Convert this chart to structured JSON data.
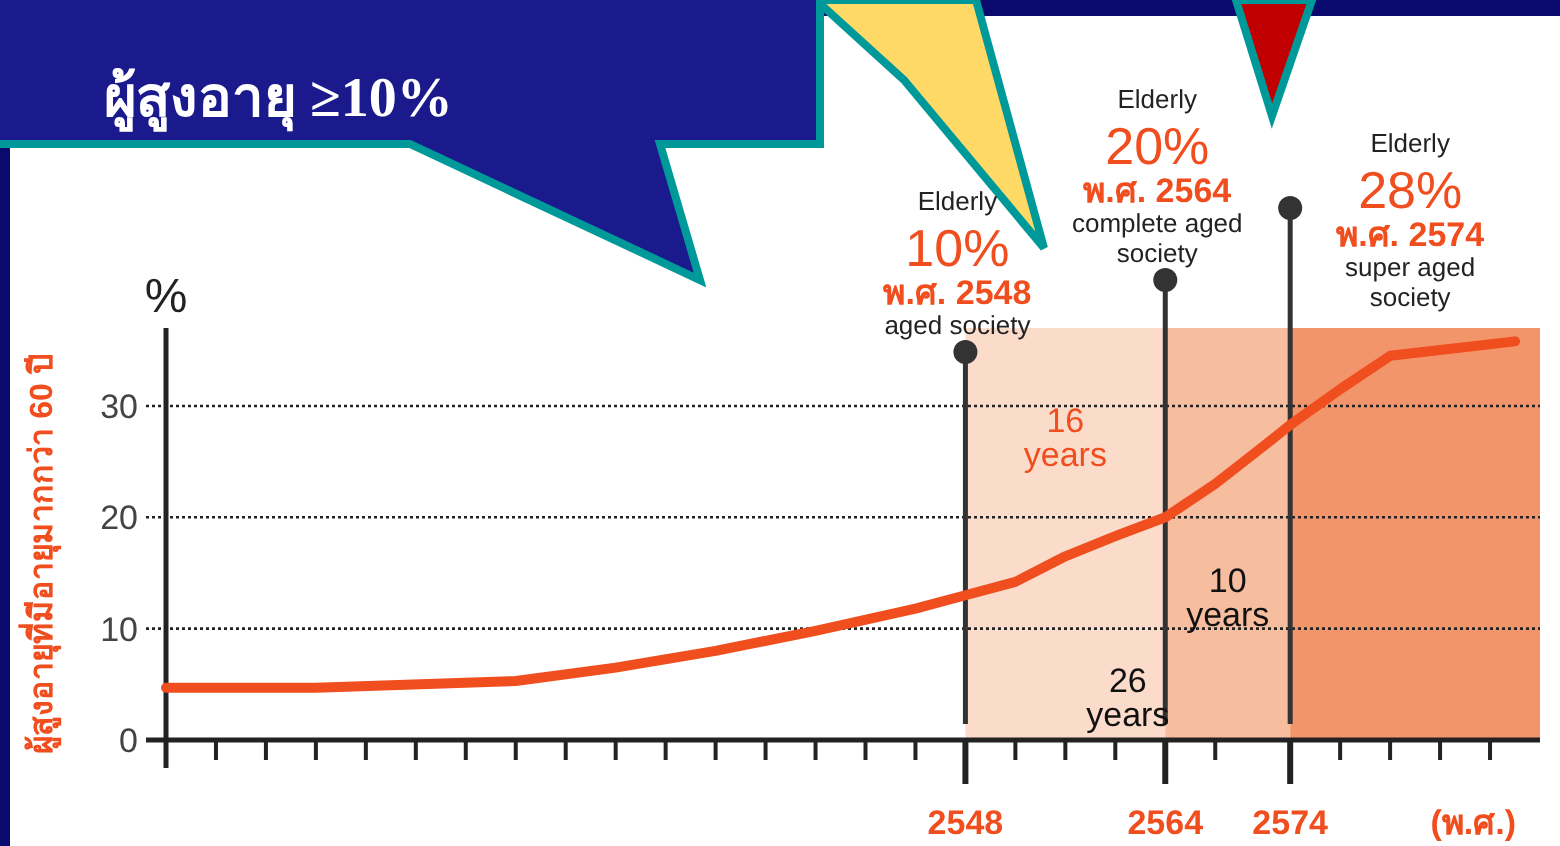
{
  "chart_data": {
    "type": "line",
    "ylabel": "ผู้สูงอายุที่มีอายุมากกว่า 60 ปี",
    "xlabel": "(พ.ศ.)",
    "x": [
      2484,
      2496,
      2512,
      2520,
      2528,
      2536,
      2544,
      2548,
      2552,
      2556,
      2560,
      2564,
      2568,
      2572,
      2574,
      2578,
      2582,
      2592
    ],
    "series": [
      {
        "color": "#f04e1e",
        "values": [
          4.7,
          4.7,
          5.3,
          6.5,
          8,
          9.8,
          11.8,
          13,
          14.2,
          16.5,
          18.3,
          20,
          23,
          26.5,
          28.3,
          31.5,
          34.5,
          35.8
        ]
      }
    ],
    "xlim": [
      2484,
      2594
    ],
    "ylim": [
      0,
      37
    ],
    "xticks": [
      {
        "value": 2484,
        "label": null
      },
      {
        "value": 2488,
        "label": null
      },
      {
        "value": 2492,
        "label": null
      },
      {
        "value": 2496,
        "label": null
      },
      {
        "value": 2500,
        "label": null
      },
      {
        "value": 2504,
        "label": null
      },
      {
        "value": 2508,
        "label": null
      },
      {
        "value": 2512,
        "label": null
      },
      {
        "value": 2516,
        "label": null
      },
      {
        "value": 2520,
        "label": null
      },
      {
        "value": 2524,
        "label": null
      },
      {
        "value": 2528,
        "label": null
      },
      {
        "value": 2532,
        "label": null
      },
      {
        "value": 2536,
        "label": null
      },
      {
        "value": 2540,
        "label": null
      },
      {
        "value": 2544,
        "label": null
      },
      2548,
      {
        "value": 2552,
        "label": null
      },
      {
        "value": 2556,
        "label": null
      },
      {
        "value": 2560,
        "label": null
      },
      2564,
      {
        "value": 2568,
        "label": null
      },
      2574,
      {
        "value": 2578,
        "label": null
      },
      {
        "value": 2582,
        "label": null
      },
      {
        "value": 2586,
        "label": null
      },
      {
        "value": 2590,
        "label": null
      }
    ],
    "yticks": [
      0,
      10,
      20,
      30
    ],
    "grid": "y",
    "bands": [
      {
        "axis": "x",
        "from": 2548,
        "to": 2564,
        "color": "#fbdccb"
      },
      {
        "axis": "x",
        "from": 2564,
        "to": 2574,
        "color": "#f7bd9f"
      },
      {
        "axis": "x",
        "from": 2574,
        "to": 2594,
        "color": "#f2956b"
      }
    ],
    "ref_lines": [
      {
        "axis": "x",
        "value": 2548,
        "color": "#333333",
        "label": "Elderly\n10%\nพ.ศ. 2548\naged society"
      },
      {
        "axis": "x",
        "value": 2564,
        "color": "#333333",
        "label": "Elderly\n20%\nพ.ศ. 2564\ncomplete aged\nsociety"
      },
      {
        "axis": "x",
        "value": 2574,
        "color": "#333333",
        "label": "Elderly\n28%\nพ.ศ. 2574\nsuper aged\nsociety"
      }
    ],
    "annotations": [
      "ผู้สูงอายุ ≥10%",
      "%",
      "16 years",
      "10 years",
      "26 years"
    ]
  }
}
